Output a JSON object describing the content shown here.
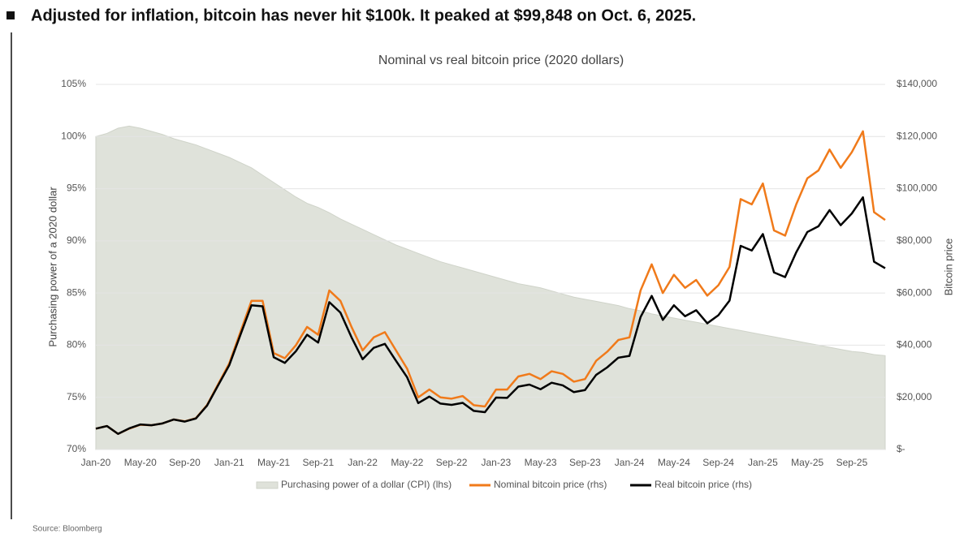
{
  "chart_data": {
    "type": "line",
    "headline": "Adjusted for inflation, bitcoin has never hit $100k. It peaked at $99,848 on Oct. 6, 2025.",
    "title": "Nominal vs real bitcoin price (2020 dollars)",
    "ylabel": "Purchasing power of a 2020 dollar",
    "y2label": "Bitcoin price",
    "source": "Source: Bloomberg",
    "categories": [
      "Jan-20",
      null,
      null,
      null,
      "May-20",
      null,
      null,
      null,
      "Sep-20",
      null,
      null,
      null,
      "Jan-21",
      null,
      null,
      null,
      "May-21",
      null,
      null,
      null,
      "Sep-21",
      null,
      null,
      null,
      "Jan-22",
      null,
      null,
      null,
      "May-22",
      null,
      null,
      null,
      "Sep-22",
      null,
      null,
      null,
      "Jan-23",
      null,
      null,
      null,
      "May-23",
      null,
      null,
      null,
      "Sep-23",
      null,
      null,
      null,
      "Jan-24",
      null,
      null,
      null,
      "May-24",
      null,
      null,
      null,
      "Sep-24",
      null,
      null,
      null,
      "Jan-25",
      null,
      null,
      null,
      "May-25",
      null,
      null,
      null,
      "Sep-25",
      null,
      null,
      null
    ],
    "ylim": [
      70,
      105
    ],
    "yticks": [
      {
        "value": 70,
        "label": "70%"
      },
      {
        "value": 75,
        "label": "75%"
      },
      {
        "value": 80,
        "label": "80%"
      },
      {
        "value": 85,
        "label": "85%"
      },
      {
        "value": 90,
        "label": "90%"
      },
      {
        "value": 95,
        "label": "95%"
      },
      {
        "value": 100,
        "label": "100%"
      },
      {
        "value": 105,
        "label": "105%"
      }
    ],
    "y2lim": [
      0,
      140000
    ],
    "y2ticks": [
      {
        "value": 0,
        "label": "$-"
      },
      {
        "value": 20000,
        "label": "$20,000"
      },
      {
        "value": 40000,
        "label": "$40,000"
      },
      {
        "value": 60000,
        "label": "$60,000"
      },
      {
        "value": 80000,
        "label": "$80,000"
      },
      {
        "value": 100000,
        "label": "$100,000"
      },
      {
        "value": 120000,
        "label": "$120,000"
      },
      {
        "value": 140000,
        "label": "$140,000"
      }
    ],
    "grid": true,
    "legend": "bottom",
    "series": [
      {
        "name": "Purchasing power of a dollar (CPI) (lhs)",
        "kind": "area",
        "color": "#dfe2da",
        "axis": "y",
        "values": [
          100,
          100.3,
          100.8,
          101,
          100.8,
          100.5,
          100.2,
          99.8,
          99.5,
          99.2,
          98.8,
          98.4,
          98,
          97.5,
          97,
          96.3,
          95.6,
          94.9,
          94.2,
          93.6,
          93.2,
          92.7,
          92.1,
          91.6,
          91.1,
          90.6,
          90.1,
          89.6,
          89.2,
          88.8,
          88.4,
          88,
          87.7,
          87.4,
          87.1,
          86.8,
          86.5,
          86.2,
          85.9,
          85.7,
          85.5,
          85.2,
          84.9,
          84.6,
          84.4,
          84.2,
          84,
          83.8,
          83.5,
          83.3,
          83,
          82.8,
          82.6,
          82.4,
          82.2,
          82,
          81.8,
          81.6,
          81.4,
          81.2,
          81,
          80.8,
          80.6,
          80.4,
          80.2,
          80,
          79.8,
          79.6,
          79.4,
          79.3,
          79.1,
          79
        ]
      },
      {
        "name": "Nominal bitcoin price (rhs)",
        "kind": "line",
        "color": "#f07a1a",
        "axis": "y2",
        "values": [
          8000,
          9000,
          6000,
          8000,
          9500,
          9300,
          10000,
          11500,
          10800,
          12000,
          17000,
          25000,
          33000,
          45000,
          57000,
          57000,
          37000,
          35000,
          40000,
          47000,
          44000,
          61000,
          57000,
          47000,
          38000,
          43000,
          45000,
          38000,
          31000,
          20000,
          23000,
          20000,
          19500,
          20500,
          17000,
          16500,
          23000,
          23000,
          28000,
          29000,
          27000,
          30000,
          29000,
          26000,
          27000,
          34000,
          37500,
          42000,
          43000,
          61000,
          71000,
          60000,
          67000,
          62000,
          65000,
          59000,
          63000,
          70000,
          96000,
          94000,
          102000,
          84000,
          82000,
          94000,
          104000,
          107000,
          115000,
          108000,
          114000,
          122000,
          91000,
          88000
        ]
      },
      {
        "name": "Real bitcoin price (rhs)",
        "kind": "line",
        "color": "#000000",
        "axis": "y2",
        "values": [
          8000,
          9000,
          6000,
          8100,
          9600,
          9300,
          10000,
          11500,
          10700,
          11900,
          16800,
          24600,
          32300,
          43900,
          55300,
          54900,
          35400,
          33200,
          37700,
          44000,
          41000,
          56500,
          52500,
          43000,
          34600,
          39000,
          40500,
          34000,
          27700,
          17800,
          20300,
          17600,
          17100,
          17900,
          14800,
          14300,
          19900,
          19800,
          24100,
          24900,
          23100,
          25600,
          24600,
          22000,
          22800,
          28600,
          31500,
          35200,
          35900,
          50800,
          58900,
          49700,
          55300,
          51100,
          53400,
          48400,
          51500,
          57100,
          78100,
          76300,
          82600,
          67900,
          66100,
          75600,
          83400,
          85600,
          91800,
          86000,
          90500,
          96700,
          72000,
          69500
        ]
      }
    ]
  }
}
